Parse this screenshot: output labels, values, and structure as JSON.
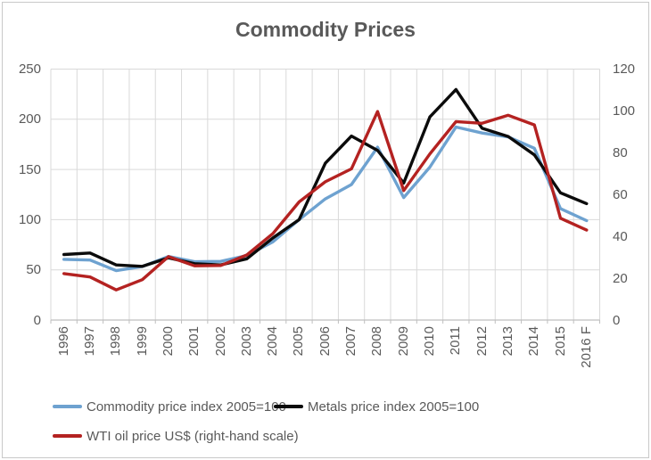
{
  "title": "Commodity Prices",
  "colors": {
    "commodity_blue": "#6EA2D0",
    "metals_black": "#0b0b0b",
    "wti_red": "#B42221",
    "text_gray": "#595959",
    "gridline": "#D9D9D9",
    "axis_line": "#BFBFBF",
    "frame_border": "#C9C9C9",
    "background": "#FFFFFF"
  },
  "chart_data": {
    "type": "line",
    "title": "Commodity Prices",
    "grid": "on",
    "legend_position": "bottom",
    "categories": [
      "1996",
      "1997",
      "1998",
      "1999",
      "2000",
      "2001",
      "2002",
      "2003",
      "2004",
      "2005",
      "2006",
      "2007",
      "2008",
      "2009",
      "2010",
      "2011",
      "2012",
      "2013",
      "2014",
      "2015",
      "2016 F"
    ],
    "left_axis": {
      "min": 0,
      "max": 250,
      "step": 50,
      "ticks": [
        0,
        50,
        100,
        150,
        200,
        250
      ]
    },
    "right_axis": {
      "min": 0,
      "max": 120,
      "step": 20,
      "ticks": [
        0,
        20,
        40,
        60,
        80,
        100,
        120
      ]
    },
    "series": [
      {
        "name": "Commodity price index 2005=100",
        "axis": "left",
        "color": "#6EA2D0",
        "values": [
          60.5,
          59.8,
          49.2,
          53.3,
          63.3,
          58.1,
          58.4,
          64.3,
          78.0,
          100.0,
          120.7,
          135.0,
          172.2,
          122.0,
          152.3,
          192.3,
          186.3,
          182.4,
          171.1,
          111.0,
          99.0
        ]
      },
      {
        "name": "Metals price index 2005=100",
        "axis": "left",
        "color": "#0b0b0b",
        "values": [
          65.3,
          66.8,
          54.9,
          53.5,
          62.0,
          56.1,
          54.9,
          61.0,
          81.9,
          100.0,
          156.2,
          183.3,
          169.0,
          136.5,
          202.3,
          229.7,
          191.0,
          182.9,
          164.6,
          126.7,
          116.0
        ]
      },
      {
        "name": "WTI oil price US$ (right-hand scale)",
        "axis": "right",
        "color": "#B42221",
        "values": [
          22.2,
          20.6,
          14.4,
          19.3,
          30.3,
          25.9,
          26.1,
          31.1,
          41.4,
          56.5,
          66.1,
          72.3,
          99.7,
          61.9,
          79.4,
          94.9,
          94.1,
          97.9,
          93.3,
          48.7,
          43.0
        ]
      }
    ]
  }
}
